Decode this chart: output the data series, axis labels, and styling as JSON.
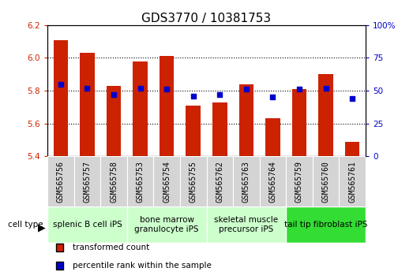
{
  "title": "GDS3770 / 10381753",
  "categories": [
    "GSM565756",
    "GSM565757",
    "GSM565758",
    "GSM565753",
    "GSM565754",
    "GSM565755",
    "GSM565762",
    "GSM565763",
    "GSM565764",
    "GSM565759",
    "GSM565760",
    "GSM565761"
  ],
  "bar_values": [
    6.11,
    6.03,
    5.83,
    5.98,
    6.01,
    5.71,
    5.73,
    5.84,
    5.63,
    5.81,
    5.9,
    5.49
  ],
  "percentile_values": [
    55,
    52,
    47,
    52,
    51,
    46,
    47,
    51,
    45,
    51,
    52,
    44
  ],
  "bar_bottom": 5.4,
  "ylim_left": [
    5.4,
    6.2
  ],
  "ylim_right": [
    0,
    100
  ],
  "yticks_left": [
    5.4,
    5.6,
    5.8,
    6.0,
    6.2
  ],
  "yticks_right": [
    0,
    25,
    50,
    75,
    100
  ],
  "bar_color": "#CC2200",
  "dot_color": "#0000CC",
  "cell_types": [
    {
      "label": "splenic B cell iPS",
      "start": 0,
      "end": 3
    },
    {
      "label": "bone marrow\ngranulocyte iPS",
      "start": 3,
      "end": 6
    },
    {
      "label": "skeletal muscle\nprecursor iPS",
      "start": 6,
      "end": 9
    },
    {
      "label": "tail tip fibroblast iPS",
      "start": 9,
      "end": 12
    }
  ],
  "ct_box_colors": [
    "#ccffcc",
    "#ccffcc",
    "#ccffcc",
    "#33dd33"
  ],
  "legend_bar_label": "transformed count",
  "legend_dot_label": "percentile rank within the sample",
  "bar_color_left": "#CC2200",
  "ylabel_right_color": "#0000CC",
  "bar_width": 0.55,
  "title_fontsize": 11,
  "tick_fontsize": 7.5,
  "category_fontsize": 7,
  "cell_label_fontsize": 7.5
}
